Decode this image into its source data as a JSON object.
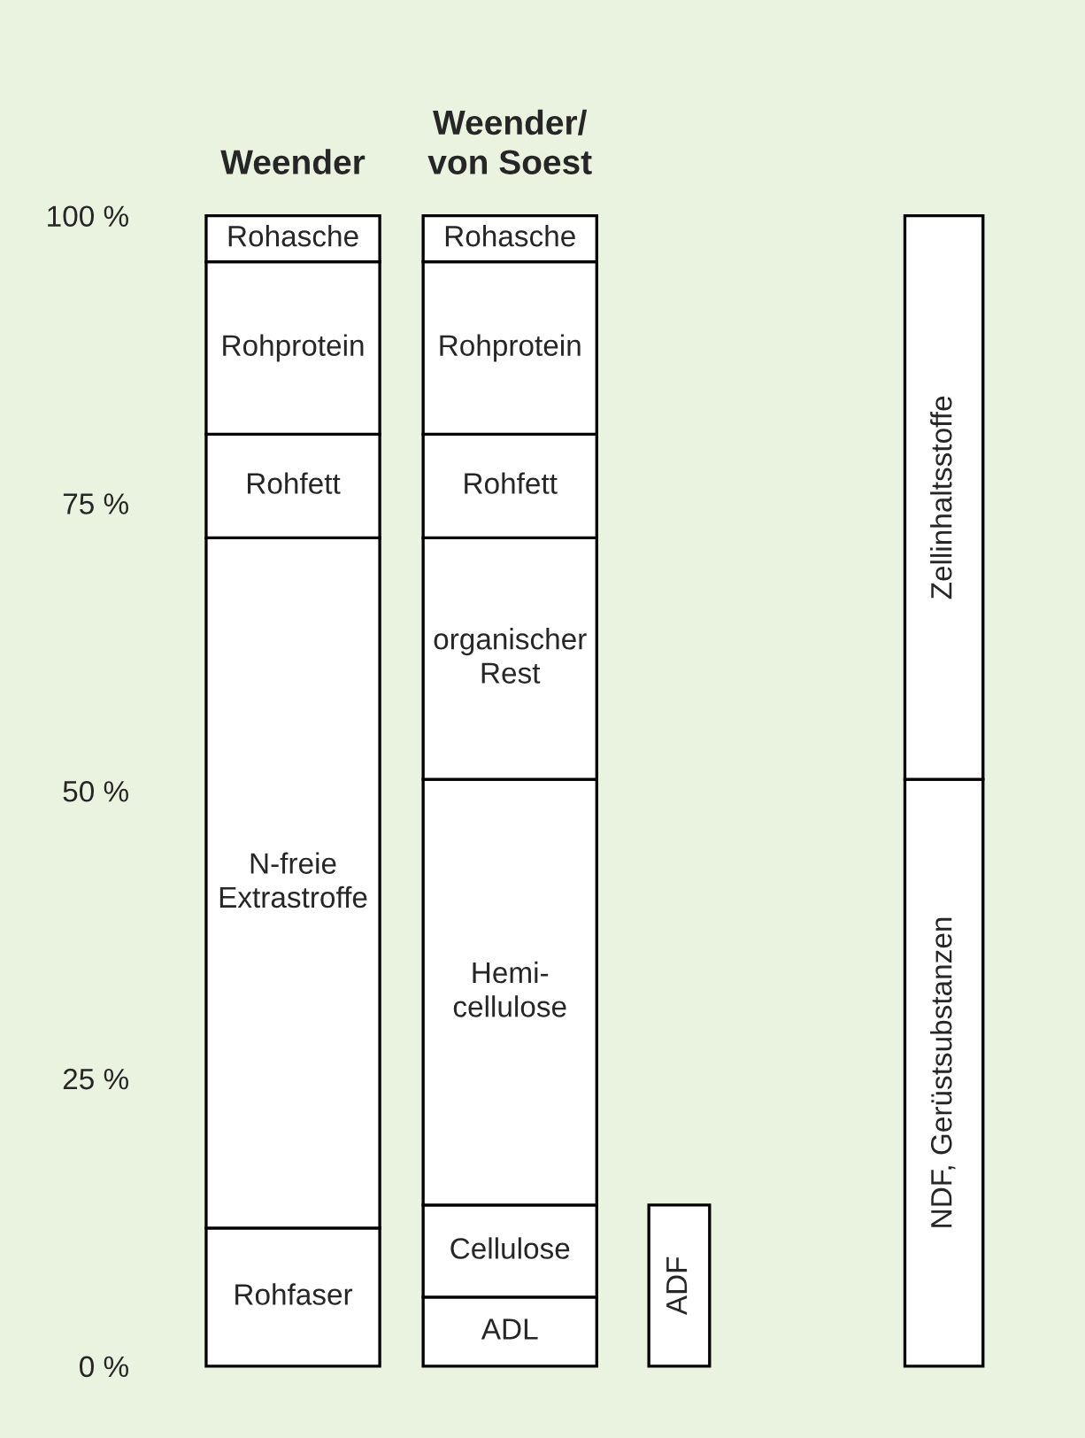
{
  "chart_data": {
    "type": "bar",
    "stacked": true,
    "categories": [
      "Weender",
      "Weender/\nvon Soest",
      null,
      null
    ],
    "ylim": [
      0,
      100
    ],
    "yticks": [
      {
        "value": 0,
        "label": "0 %"
      },
      {
        "value": 25,
        "label": "25 %"
      },
      {
        "value": 50,
        "label": "50 %"
      },
      {
        "value": 75,
        "label": "75 %"
      },
      {
        "value": 100,
        "label": "100 %"
      }
    ],
    "grid": false,
    "legend": false,
    "series": [
      {
        "name": "ADL",
        "color": "#ffffff",
        "values": [
          null,
          6,
          null,
          null
        ]
      },
      {
        "name": "Rohfaser",
        "color": "#ffffff",
        "values": [
          12,
          null,
          null,
          null
        ]
      },
      {
        "name": "Cellulose",
        "color": "#ffffff",
        "values": [
          null,
          8,
          null,
          null
        ]
      },
      {
        "name": "Hemi-\ncellulose",
        "color": "#ffffff",
        "values": [
          null,
          37,
          null,
          null
        ]
      },
      {
        "name": "N-freie\nExtrastroffe",
        "color": "#ffffff",
        "values": [
          60,
          null,
          null,
          null
        ]
      },
      {
        "name": "organischer\nRest",
        "color": "#ffffff",
        "values": [
          null,
          21,
          null,
          null
        ]
      },
      {
        "name": "Rohfett",
        "color": "#ffffff",
        "values": [
          9,
          9,
          null,
          null
        ]
      },
      {
        "name": "Rohprotein",
        "color": "#ffffff",
        "values": [
          15,
          15,
          null,
          null
        ]
      },
      {
        "name": "Rohasche",
        "color": "#ffffff",
        "values": [
          4,
          4,
          null,
          null
        ]
      },
      {
        "name": "ADF",
        "color": "#ffffff",
        "values": [
          null,
          null,
          14,
          null
        ]
      },
      {
        "name": "NDF, Gerüstsubstanzen",
        "color": "#ffffff",
        "values": [
          null,
          null,
          null,
          51
        ]
      },
      {
        "name": "Zellinhaltsstoffe",
        "color": "#ffffff",
        "values": [
          null,
          null,
          null,
          49
        ]
      }
    ]
  }
}
